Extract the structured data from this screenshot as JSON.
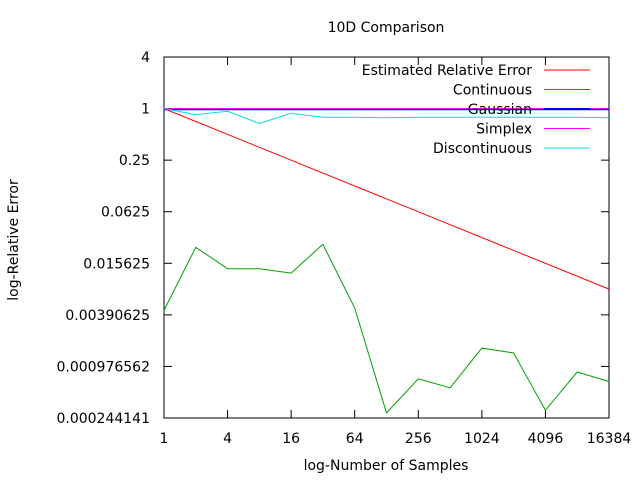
{
  "chart_data": {
    "type": "line",
    "title": "10D Comparison",
    "xlabel": "log-Number of Samples",
    "ylabel": "log-Relative Error",
    "x_scale": "log2",
    "y_scale": "log2",
    "xlim": [
      1,
      16384
    ],
    "ylim": [
      0.000244141,
      4
    ],
    "x_ticks": [
      {
        "value": 1,
        "label": "1"
      },
      {
        "value": 4,
        "label": "4"
      },
      {
        "value": 16,
        "label": "16"
      },
      {
        "value": 64,
        "label": "64"
      },
      {
        "value": 256,
        "label": "256"
      },
      {
        "value": 1024,
        "label": "1024"
      },
      {
        "value": 4096,
        "label": "4096"
      },
      {
        "value": 16384,
        "label": "16384"
      }
    ],
    "y_ticks": [
      {
        "value": 4,
        "label": "4"
      },
      {
        "value": 1,
        "label": "1"
      },
      {
        "value": 0.25,
        "label": "0.25"
      },
      {
        "value": 0.0625,
        "label": "0.0625"
      },
      {
        "value": 0.015625,
        "label": "0.015625"
      },
      {
        "value": 0.00390625,
        "label": "0.00390625"
      },
      {
        "value": 0.000976562,
        "label": "0.000976562"
      },
      {
        "value": 0.000244141,
        "label": "0.000244141"
      }
    ],
    "legend_position": "top-right",
    "grid": false,
    "series": [
      {
        "name": "Estimated Relative Error",
        "color": "#ff0000",
        "x": [
          1,
          16384
        ],
        "y": [
          1,
          0.0078
        ]
      },
      {
        "name": "Continuous",
        "color": "#00a000",
        "x": [
          1,
          2,
          4,
          8,
          16,
          32,
          64,
          128,
          256,
          512,
          1024,
          2048,
          4096,
          8192,
          16384
        ],
        "y": [
          0.0044,
          0.024,
          0.0135,
          0.0135,
          0.012,
          0.026,
          0.0047,
          0.00028,
          0.0007,
          0.00055,
          0.0016,
          0.0014,
          0.0003,
          0.00084,
          0.00065
        ]
      },
      {
        "name": "Gaussian",
        "color": "#0000ff",
        "x": [
          1,
          16384
        ],
        "y": [
          0.98,
          0.98
        ]
      },
      {
        "name": "Simplex",
        "color": "#ff00ff",
        "x": [
          1,
          4,
          16,
          64,
          256,
          1024,
          4096,
          16384
        ],
        "y": [
          1,
          1,
          1,
          1,
          1,
          1,
          1,
          1
        ]
      },
      {
        "name": "Discontinuous",
        "color": "#00e0e0",
        "x": [
          1,
          2,
          4,
          8,
          16,
          32,
          64,
          128,
          256,
          512,
          1024,
          2048,
          4096,
          8192,
          16384
        ],
        "y": [
          1,
          0.85,
          0.93,
          0.67,
          0.88,
          0.79,
          0.79,
          0.78,
          0.79,
          0.79,
          0.79,
          0.79,
          0.79,
          0.79,
          0.78
        ]
      }
    ]
  }
}
